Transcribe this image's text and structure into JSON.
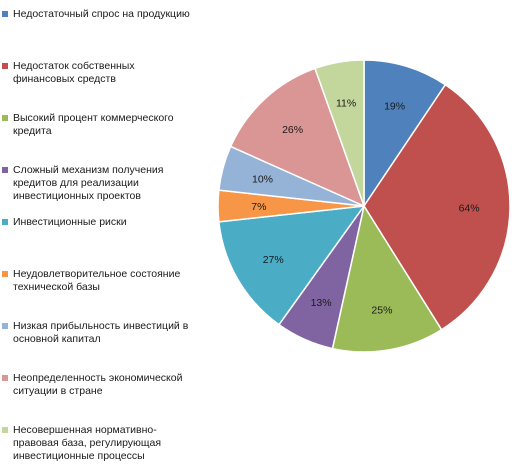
{
  "chart_data": {
    "type": "pie",
    "title": "",
    "legend_position": "left",
    "series": [
      {
        "label": "Недостаточный спрос на продукцию",
        "value": 19,
        "display": "19%",
        "color": "#4F81BD"
      },
      {
        "label": "Недостаток собственных финансовых средств",
        "value": 64,
        "display": "64%",
        "color": "#C0504D"
      },
      {
        "label": "Высокий процент коммерческого кредита",
        "value": 25,
        "display": "25%",
        "color": "#9BBB59"
      },
      {
        "label": "Сложный механизм получения кредитов для реализации инвестиционных проектов",
        "value": 13,
        "display": "13%",
        "color": "#8064A2"
      },
      {
        "label": "Инвестиционные риски",
        "value": 27,
        "display": "27%",
        "color": "#4BACC6"
      },
      {
        "label": "Неудовлетворительное состояние технической базы",
        "value": 7,
        "display": "7%",
        "color": "#F79646"
      },
      {
        "label": "Низкая прибыльность инвестиций в основной капитал",
        "value": 10,
        "display": "10%",
        "color": "#95B3D7"
      },
      {
        "label": "Неопределенность экономической ситуации в стране",
        "value": 26,
        "display": "26%",
        "color": "#D99694"
      },
      {
        "label": "Несовершенная нормативно-правовая база, регулирующая инвестиционные процессы",
        "value": 11,
        "display": "11%",
        "color": "#C3D69B"
      }
    ]
  }
}
